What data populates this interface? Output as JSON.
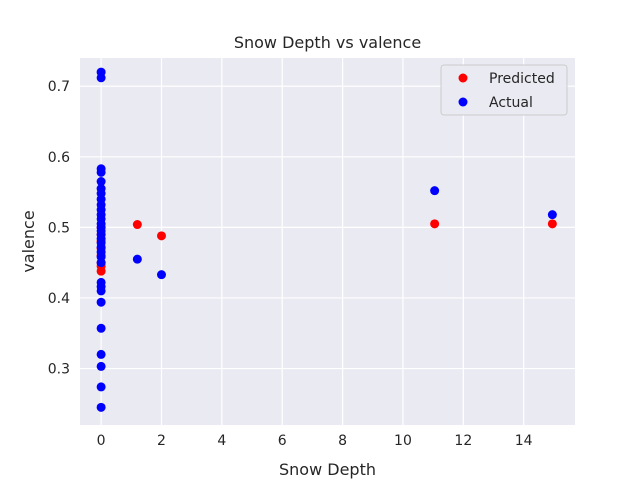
{
  "chart_data": {
    "type": "scatter",
    "title": "Snow Depth vs valence",
    "xlabel": "Snow Depth",
    "ylabel": "valence",
    "xlim": [
      -0.7,
      15.7
    ],
    "ylim": [
      0.22,
      0.74
    ],
    "xticks": [
      0,
      2,
      4,
      6,
      8,
      10,
      12,
      14
    ],
    "yticks": [
      0.3,
      0.4,
      0.5,
      0.6,
      0.7
    ],
    "grid": true,
    "legend_position": "top-right",
    "series": [
      {
        "name": "Predicted",
        "color": "#ff0000",
        "points": [
          {
            "x": 0,
            "y": 0.438
          },
          {
            "x": 0,
            "y": 0.445
          },
          {
            "x": 0,
            "y": 0.45
          },
          {
            "x": 0,
            "y": 0.46
          },
          {
            "x": 0,
            "y": 0.47
          },
          {
            "x": 0,
            "y": 0.48
          },
          {
            "x": 0,
            "y": 0.49
          },
          {
            "x": 0,
            "y": 0.5
          },
          {
            "x": 1.2,
            "y": 0.504
          },
          {
            "x": 2.0,
            "y": 0.488
          },
          {
            "x": 11.05,
            "y": 0.505
          },
          {
            "x": 14.95,
            "y": 0.505
          }
        ]
      },
      {
        "name": "Actual",
        "color": "#0000ff",
        "points": [
          {
            "x": 0,
            "y": 0.72
          },
          {
            "x": 0,
            "y": 0.712
          },
          {
            "x": 0,
            "y": 0.583
          },
          {
            "x": 0,
            "y": 0.578
          },
          {
            "x": 0,
            "y": 0.565
          },
          {
            "x": 0,
            "y": 0.555
          },
          {
            "x": 0,
            "y": 0.548
          },
          {
            "x": 0,
            "y": 0.54
          },
          {
            "x": 0,
            "y": 0.532
          },
          {
            "x": 0,
            "y": 0.525
          },
          {
            "x": 0,
            "y": 0.518
          },
          {
            "x": 0,
            "y": 0.512
          },
          {
            "x": 0,
            "y": 0.505
          },
          {
            "x": 0,
            "y": 0.5
          },
          {
            "x": 0,
            "y": 0.495
          },
          {
            "x": 0,
            "y": 0.49
          },
          {
            "x": 0,
            "y": 0.484
          },
          {
            "x": 0,
            "y": 0.478
          },
          {
            "x": 0,
            "y": 0.472
          },
          {
            "x": 0,
            "y": 0.465
          },
          {
            "x": 0,
            "y": 0.458
          },
          {
            "x": 0,
            "y": 0.45
          },
          {
            "x": 0,
            "y": 0.422
          },
          {
            "x": 0,
            "y": 0.416
          },
          {
            "x": 0,
            "y": 0.41
          },
          {
            "x": 0,
            "y": 0.394
          },
          {
            "x": 0,
            "y": 0.357
          },
          {
            "x": 0,
            "y": 0.32
          },
          {
            "x": 0,
            "y": 0.303
          },
          {
            "x": 0,
            "y": 0.274
          },
          {
            "x": 0,
            "y": 0.245
          },
          {
            "x": 1.2,
            "y": 0.455
          },
          {
            "x": 2.0,
            "y": 0.433
          },
          {
            "x": 11.05,
            "y": 0.552
          },
          {
            "x": 14.95,
            "y": 0.518
          }
        ]
      }
    ]
  }
}
